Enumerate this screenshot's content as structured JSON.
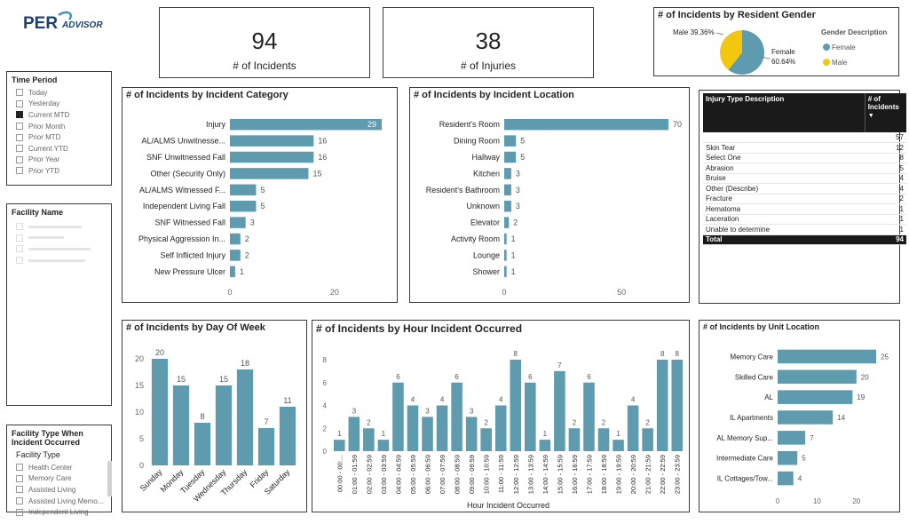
{
  "logo": {
    "text_main": "PER",
    "text_sub": "ADVISOR"
  },
  "kpis": [
    {
      "value": "94",
      "label": "# of Incidents"
    },
    {
      "value": "38",
      "label": "# of Injuries"
    }
  ],
  "gender_chart": {
    "title": "# of Incidents by Resident Gender",
    "legend_title": "Gender Description",
    "slices": [
      {
        "name": "Female",
        "label": "Female",
        "pct_label": "60.64%",
        "value": 60.64,
        "color": "#5F9BAE"
      },
      {
        "name": "Male",
        "label": "Male 39.36%",
        "pct_label": "",
        "value": 39.36,
        "color": "#F2C80F"
      }
    ]
  },
  "time_period": {
    "title": "Time Period",
    "items": [
      {
        "label": "Today",
        "checked": false
      },
      {
        "label": "Yesterday",
        "checked": false
      },
      {
        "label": "Current MTD",
        "checked": true
      },
      {
        "label": "Prior Month",
        "checked": false
      },
      {
        "label": "Prior MTD",
        "checked": false
      },
      {
        "label": "Current YTD",
        "checked": false
      },
      {
        "label": "Prior Year",
        "checked": false
      },
      {
        "label": "Prior YTD",
        "checked": false
      }
    ]
  },
  "facility_name": {
    "title": "Facility Name"
  },
  "facility_type": {
    "title": "Facility Type When Incident Occurred",
    "subtitle": "Facility Type",
    "items": [
      "Health Center",
      "Memory Care",
      "Assisted Living",
      "Assisted Living Memo...",
      "Independent Living"
    ]
  },
  "injury_table": {
    "col1": "Injury Type Description",
    "col2": "# of Incidents",
    "rows": [
      {
        "label": "",
        "value": "57"
      },
      {
        "label": "Skin Tear",
        "value": "12"
      },
      {
        "label": "Select One",
        "value": "8"
      },
      {
        "label": "Abrasion",
        "value": "5"
      },
      {
        "label": "Bruise",
        "value": "4"
      },
      {
        "label": "Other (Describe)",
        "value": "4"
      },
      {
        "label": "Fracture",
        "value": "2"
      },
      {
        "label": "Hematoma",
        "value": "1"
      },
      {
        "label": "Laceration",
        "value": "1"
      },
      {
        "label": "Unable to determine",
        "value": "1"
      }
    ],
    "total_label": "Total",
    "total_value": "94"
  },
  "colors": {
    "bar": "#5F9BAE",
    "female": "#5F9BAE",
    "male": "#F2C80F"
  },
  "chart_data": [
    {
      "id": "category",
      "type": "bar",
      "orientation": "horizontal",
      "title": "# of Incidents by Incident Category",
      "categories": [
        "Injury",
        "AL/ALMS Unwitnesse...",
        "SNF Unwitnessed Fall",
        "Other (Security Only)",
        "AL/ALMS Witnessed F...",
        "Independent Living Fall",
        "SNF Witnessed Fall",
        "Physical Aggression In...",
        "Self Inflicted Injury",
        "New Pressure Ulcer"
      ],
      "values": [
        29,
        16,
        16,
        15,
        5,
        5,
        3,
        2,
        2,
        1
      ],
      "xlim": [
        0,
        29
      ],
      "xticks": [
        0,
        20
      ]
    },
    {
      "id": "location",
      "type": "bar",
      "orientation": "horizontal",
      "title": "# of Incidents by Incident Location",
      "categories": [
        "Resident's Room",
        "Dining Room",
        "Hallway",
        "Kitchen",
        "Resident's Bathroom",
        "Unknown",
        "Elevator",
        "Activity Room",
        "Lounge",
        "Shower"
      ],
      "values": [
        70,
        5,
        5,
        3,
        3,
        3,
        2,
        1,
        1,
        1
      ],
      "xlim": [
        0,
        70
      ],
      "xticks": [
        0,
        50
      ]
    },
    {
      "id": "dow",
      "type": "bar",
      "title": "# of Incidents by Day Of Week",
      "categories": [
        "Sunday",
        "Monday",
        "Tuesday",
        "Wednesday",
        "Thursday",
        "Friday",
        "Saturday"
      ],
      "values": [
        20,
        15,
        8,
        15,
        18,
        7,
        11
      ],
      "ylim": [
        0,
        20
      ],
      "yticks": [
        0,
        5,
        10,
        15,
        20
      ]
    },
    {
      "id": "hour",
      "type": "bar",
      "title": "# of Incidents by Hour Incident Occurred",
      "xlabel": "Hour Incident Occurred",
      "categories": [
        "00:00 - 00:...",
        "01:00 - 01:59",
        "02:00 - 02:59",
        "03:00 - 03:59",
        "04:00 - 04:59",
        "05:00 - 05:59",
        "06:00 - 06:59",
        "07:00 - 07:59",
        "08:00 - 08:59",
        "09:00 - 09:59",
        "10:00 - 10:59",
        "11:00 - 11:59",
        "12:00 - 12:59",
        "13:00 - 13:59",
        "14:00 - 14:59",
        "15:00 - 15:59",
        "16:00 - 16:59",
        "17:00 - 17:59",
        "18:00 - 18:59",
        "19:00 - 19:59",
        "20:00 - 20:59",
        "21:00 - 21:59",
        "22:00 - 22:59",
        "23:00 - 23:59"
      ],
      "values": [
        1,
        3,
        2,
        1,
        6,
        4,
        3,
        4,
        6,
        3,
        2,
        4,
        8,
        6,
        1,
        7,
        2,
        6,
        2,
        1,
        4,
        2,
        8,
        8
      ],
      "ylim": [
        0,
        8
      ],
      "yticks": [
        0,
        2,
        4,
        6,
        8
      ]
    },
    {
      "id": "unit",
      "type": "bar",
      "orientation": "horizontal",
      "title": "# of Incidents by Unit Location",
      "categories": [
        "Memory Care",
        "Skilled Care",
        "AL",
        "IL Apartments",
        "AL Memory Sup...",
        "Intermediate Care",
        "IL Cottages/Tow..."
      ],
      "values": [
        25,
        20,
        19,
        14,
        7,
        5,
        4
      ],
      "xlim": [
        0,
        25
      ],
      "xticks": [
        0,
        10,
        20
      ]
    }
  ]
}
